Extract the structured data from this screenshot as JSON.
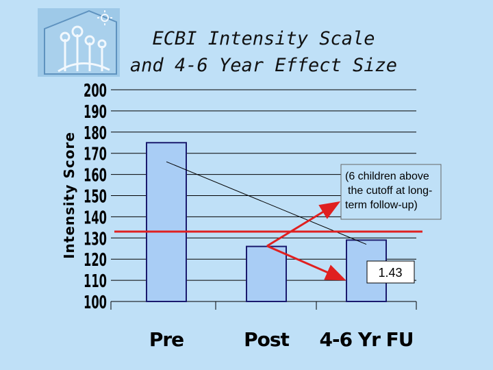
{
  "slide": {
    "title_line1": "ECBI Intensity Scale",
    "title_line2": "and 4-6 Year Effect Size",
    "background": "#bfe0f7"
  },
  "logo": {
    "icon": "house-with-family-logo-icon"
  },
  "chart_data": {
    "type": "bar",
    "categories": [
      "Pre",
      "Post",
      "4-6 Yr FU"
    ],
    "values": [
      175,
      126,
      129
    ],
    "ylabel": "Intensity Score",
    "xlabel": "",
    "ylim": [
      100,
      200
    ],
    "yticks": [
      100,
      110,
      120,
      130,
      140,
      150,
      160,
      170,
      180,
      190,
      200
    ],
    "grid": true,
    "bar_color": "#a9cdf5",
    "bar_edge": "#1a1a6e",
    "cutoff_line": {
      "value": 133,
      "color": "#e02020"
    },
    "trend_line": {
      "from_value": 166,
      "to_value": 127
    },
    "annotations": [
      {
        "text_lines": [
          "(6 children above",
          "the cutoff at long-",
          "term follow-up)"
        ]
      },
      {
        "text": "1.43"
      }
    ]
  }
}
